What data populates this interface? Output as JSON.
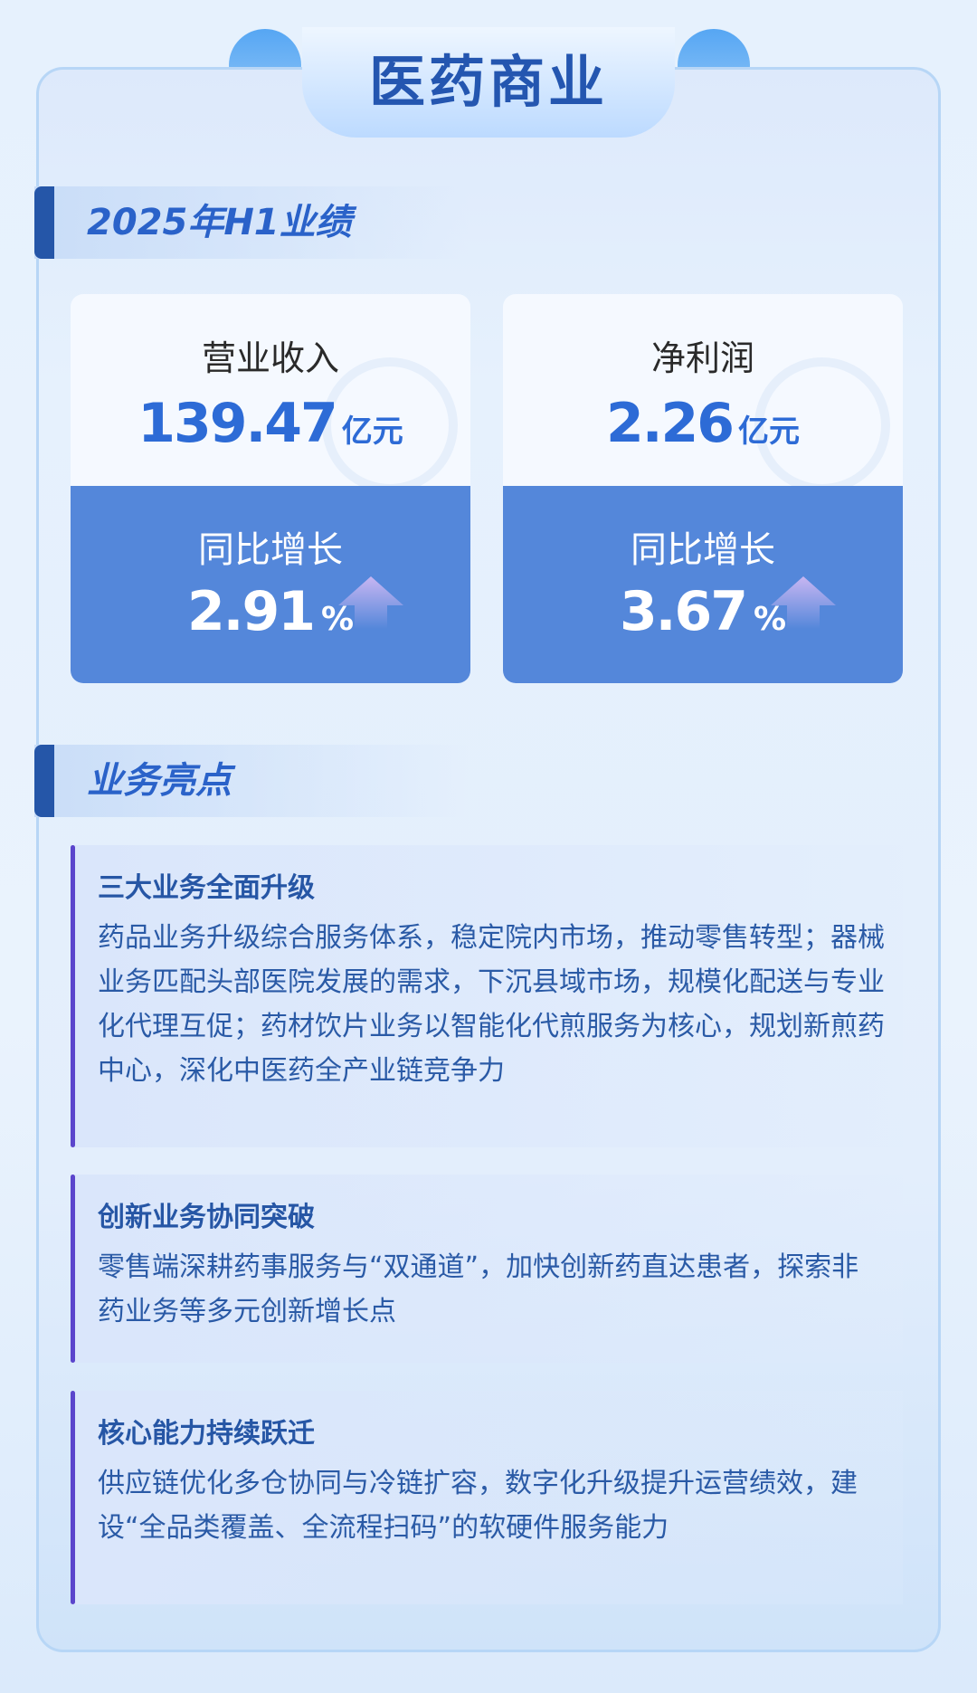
{
  "title": "医药商业",
  "section_performance": "2025年H1业绩",
  "cards": [
    {
      "label": "营业收入",
      "value": "139.47",
      "unit": "亿元",
      "growth_label": "同比增长",
      "growth": "2.91",
      "growth_unit": "%"
    },
    {
      "label": "净利润",
      "value": "2.26",
      "unit": "亿元",
      "growth_label": "同比增长",
      "growth": "3.67",
      "growth_unit": "%"
    }
  ],
  "section_highlights": "业务亮点",
  "highlights": [
    {
      "title": "三大业务全面升级",
      "body": "药品业务升级综合服务体系，稳定院内市场，推动零售转型；器械业务匹配头部医院发展的需求，下沉县域市场，规模化配送与专业化代理互促；药材饮片业务以智能化代煎服务为核心，规划新煎药中心，深化中医药全产业链竞争力"
    },
    {
      "title": "创新业务协同突破",
      "body": "零售端深耕药事服务与“双通道”，加快创新药直达患者，探索非药业务等多元创新增长点"
    },
    {
      "title": "核心能力持续跃迁",
      "body": "供应链优化多仓协同与冷链扩容，数字化升级提升运营绩效，建设“全品类覆盖、全流程扫码”的软硬件服务能力"
    }
  ],
  "colors": {
    "accent": "#2456b0",
    "card_blue": "#5487da",
    "bar_purple": "#5b45cc"
  }
}
